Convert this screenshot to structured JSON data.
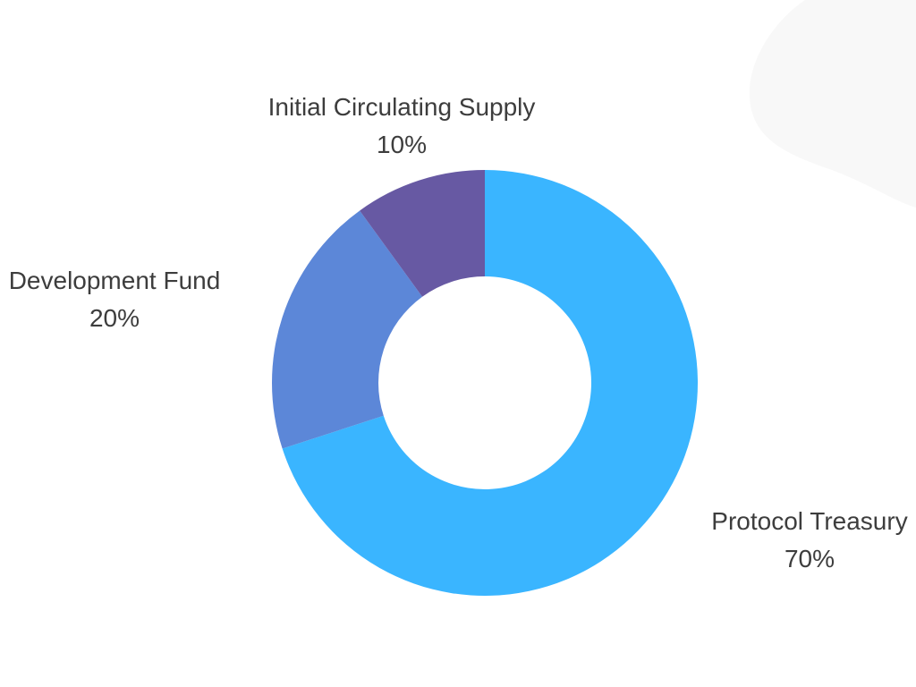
{
  "chart_data": {
    "type": "pie",
    "title": "",
    "categories": [
      "Protocol Treasury",
      "Development Fund",
      "Initial Circulating Supply"
    ],
    "values": [
      70,
      20,
      10
    ],
    "value_labels": [
      "70%",
      "20%",
      "10%"
    ],
    "colors": [
      "#3ab5ff",
      "#5c87d8",
      "#6759a3"
    ],
    "donut": true,
    "start_angle": "12 o'clock, clockwise"
  },
  "page": {
    "background_blob_color": "#f8f8f8"
  }
}
